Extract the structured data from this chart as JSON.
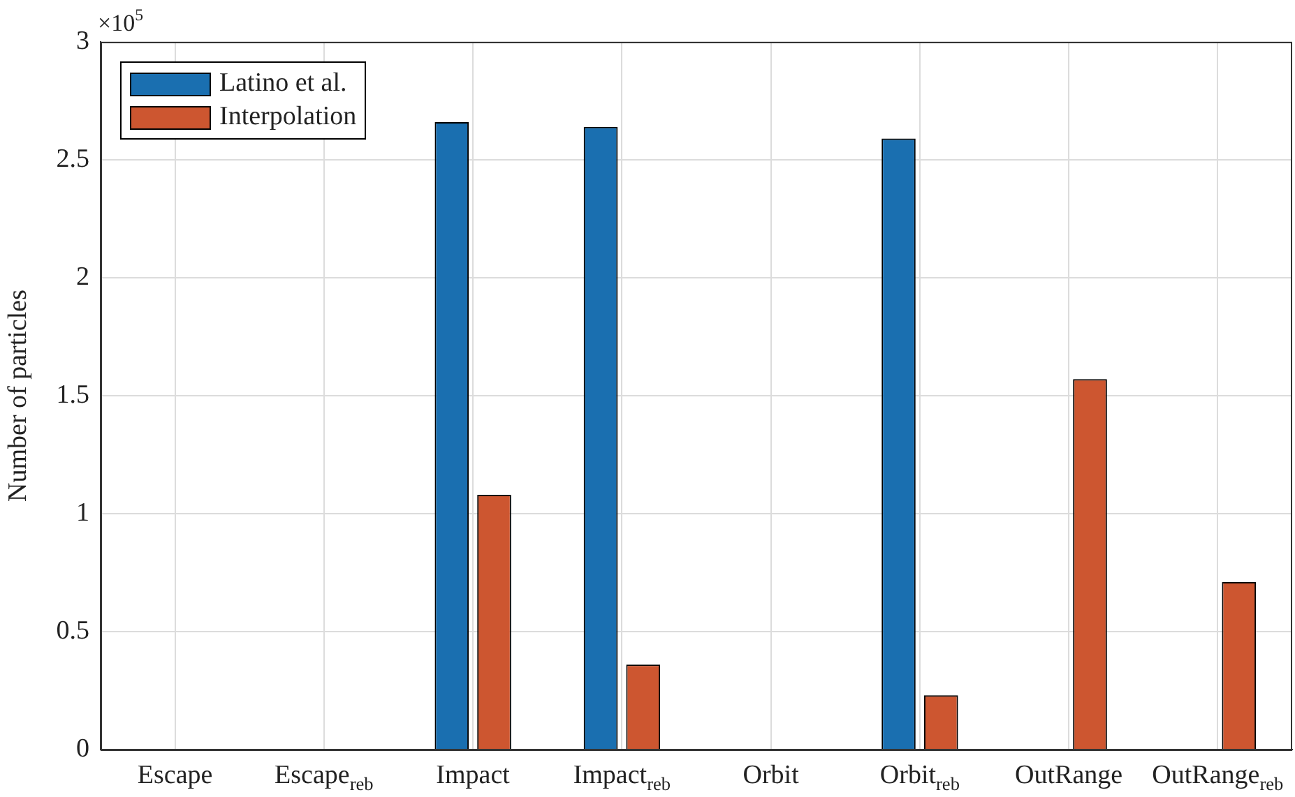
{
  "chart_data": {
    "type": "bar",
    "ylabel": "Number of particles",
    "categories": [
      "Escape",
      "Escape$_{reb}$",
      "Impact",
      "Impact$_{reb}$",
      "Orbit",
      "Orbit$_{reb}$",
      "OutRange",
      "OutRange$_{reb}$"
    ],
    "series": [
      {
        "name": "Latino et al.",
        "color": "#1a6fb0",
        "values": [
          0,
          0,
          2.66,
          2.64,
          0,
          2.59,
          0,
          0
        ]
      },
      {
        "name": "Interpolation",
        "color": "#cd5630",
        "values": [
          0,
          0,
          1.08,
          0.36,
          0,
          0.23,
          1.57,
          0.71
        ]
      }
    ],
    "ylim": [
      0,
      3
    ],
    "yticks": [
      0,
      0.5,
      1,
      1.5,
      2,
      2.5,
      3
    ],
    "annotations": [
      "×10$^{5}$"
    ],
    "grid": true,
    "legend": "top left"
  }
}
